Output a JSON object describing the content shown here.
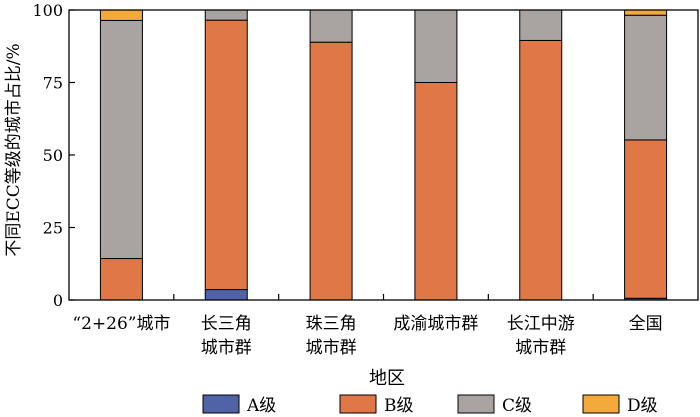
{
  "chart_data": {
    "type": "bar",
    "stacked": true,
    "categories": [
      [
        "“2+26”城市"
      ],
      [
        "长三角",
        "城市群"
      ],
      [
        "珠三角",
        "城市群"
      ],
      [
        "成渝城市群"
      ],
      [
        "长江中游",
        "城市群"
      ],
      [
        "全国"
      ]
    ],
    "series": [
      {
        "name": "A级",
        "color": "#4f63a6",
        "values": [
          0,
          3.6,
          0,
          0,
          0,
          0.6
        ]
      },
      {
        "name": "B级",
        "color": "#e07747",
        "values": [
          14.3,
          92.9,
          88.9,
          75.0,
          89.5,
          54.6
        ]
      },
      {
        "name": "C级",
        "color": "#a9a4a1",
        "values": [
          82.1,
          3.5,
          11.1,
          25.0,
          10.5,
          43.0
        ]
      },
      {
        "name": "D级",
        "color": "#f5a93a",
        "values": [
          3.6,
          0,
          0,
          0,
          0,
          1.8
        ]
      }
    ],
    "xlabel": "地区",
    "ylabel": "不同ECC等级的城市占比/%",
    "ylim": [
      0,
      100
    ],
    "yticks": [
      0,
      25,
      50,
      75,
      100
    ],
    "legend": "bottom",
    "grid": false
  }
}
